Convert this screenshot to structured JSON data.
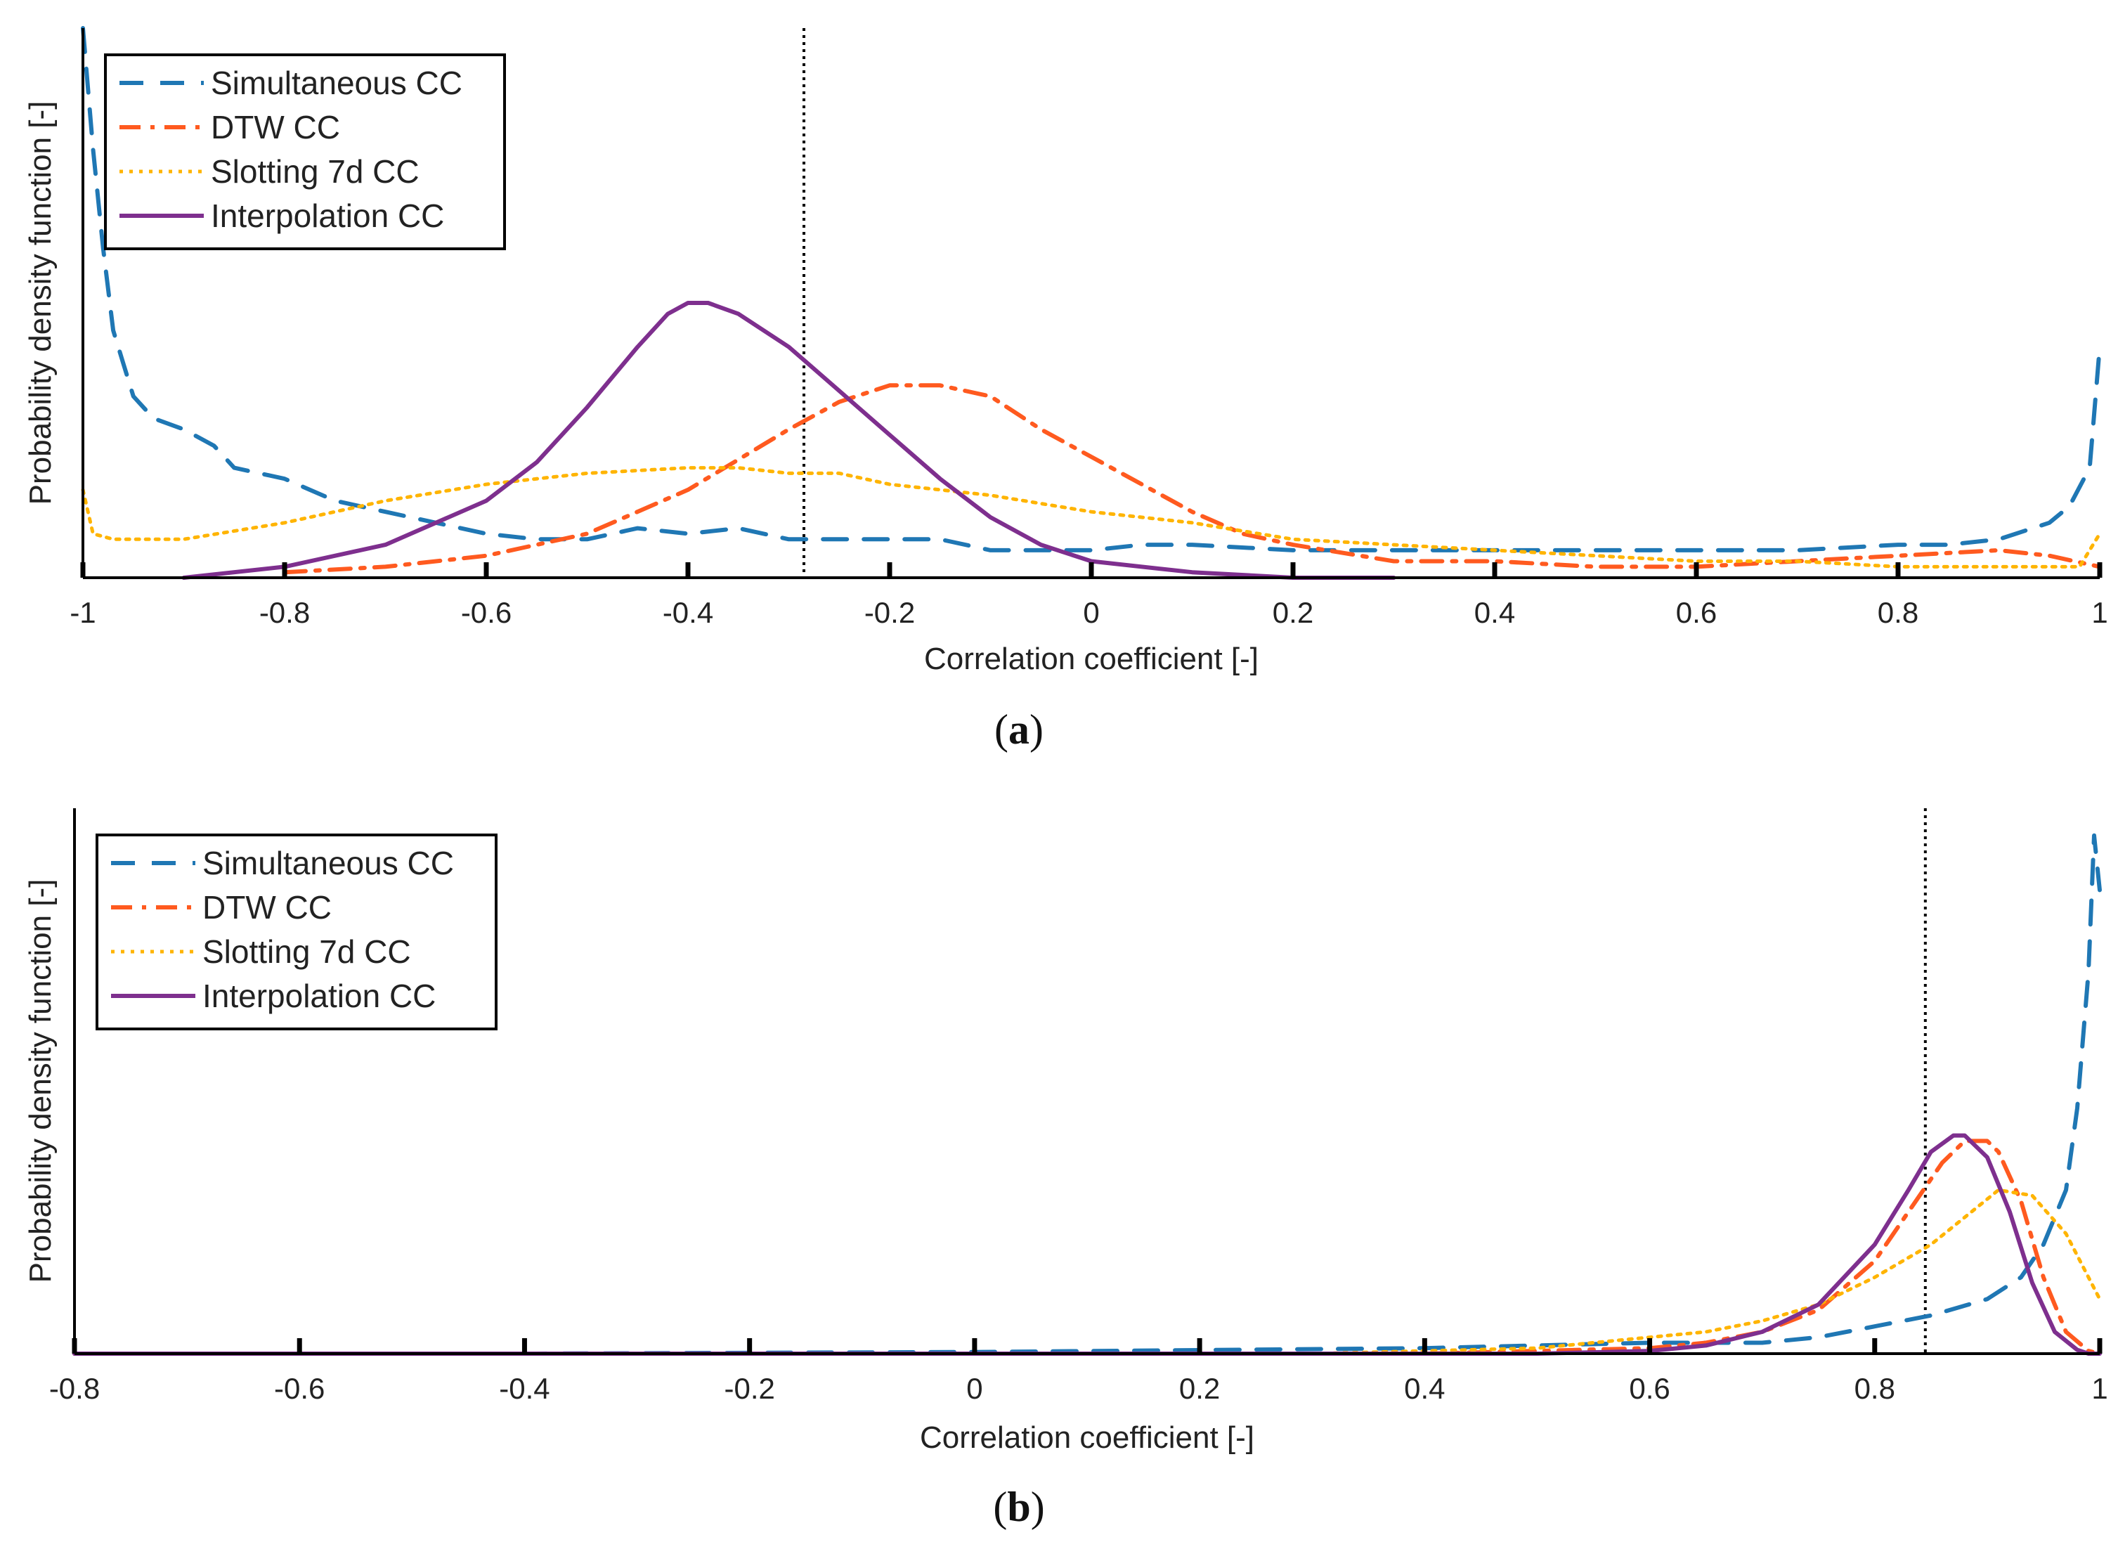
{
  "figure": {
    "panels": [
      {
        "caption_letter": "a",
        "caption_open": "(",
        "caption_close": ")"
      },
      {
        "caption_letter": "b",
        "caption_open": "(",
        "caption_close": ")"
      }
    ]
  },
  "colors": {
    "simultaneous": "#1f77b4",
    "dtw": "#ff5a1f",
    "slotting": "#ffb400",
    "interpolation": "#7e2f8e",
    "axis": "#000000"
  },
  "chart_data": [
    {
      "type": "line",
      "panel": "a",
      "title": "",
      "xlabel": "Correlation coefficient [-]",
      "ylabel": "Probability density function [-]",
      "xlim": [
        -1,
        1
      ],
      "ylim": [
        0,
        1
      ],
      "xticks": [
        -1,
        -0.8,
        -0.6,
        -0.4,
        -0.2,
        0,
        0.2,
        0.4,
        0.6,
        0.8,
        1
      ],
      "xtick_labels": [
        "-1",
        "-0.8",
        "-0.6",
        "-0.4",
        "-0.2",
        "0",
        "0.2",
        "0.4",
        "0.6",
        "0.8",
        "1"
      ],
      "yticks_shown": false,
      "reference_line_x": -0.285,
      "legend_position": "top-left",
      "series": [
        {
          "name": "Simultaneous CC",
          "style": "dashed",
          "color_key": "simultaneous",
          "x": [
            -1,
            -0.99,
            -0.98,
            -0.97,
            -0.96,
            -0.95,
            -0.93,
            -0.9,
            -0.87,
            -0.85,
            -0.8,
            -0.75,
            -0.7,
            -0.65,
            -0.6,
            -0.55,
            -0.5,
            -0.45,
            -0.4,
            -0.35,
            -0.3,
            -0.25,
            -0.2,
            -0.15,
            -0.1,
            -0.05,
            0,
            0.05,
            0.1,
            0.2,
            0.3,
            0.4,
            0.5,
            0.6,
            0.7,
            0.8,
            0.85,
            0.9,
            0.95,
            0.97,
            0.99,
            1
          ],
          "y": [
            1.0,
            0.78,
            0.6,
            0.45,
            0.39,
            0.33,
            0.29,
            0.27,
            0.24,
            0.2,
            0.18,
            0.14,
            0.12,
            0.1,
            0.08,
            0.07,
            0.07,
            0.09,
            0.08,
            0.09,
            0.07,
            0.07,
            0.07,
            0.07,
            0.05,
            0.05,
            0.05,
            0.06,
            0.06,
            0.05,
            0.05,
            0.05,
            0.05,
            0.05,
            0.05,
            0.06,
            0.06,
            0.07,
            0.1,
            0.13,
            0.2,
            0.42
          ]
        },
        {
          "name": "DTW CC",
          "style": "dash-dot",
          "color_key": "dtw",
          "x": [
            -0.8,
            -0.7,
            -0.6,
            -0.5,
            -0.4,
            -0.3,
            -0.25,
            -0.2,
            -0.15,
            -0.1,
            -0.05,
            0,
            0.05,
            0.1,
            0.15,
            0.2,
            0.3,
            0.4,
            0.5,
            0.6,
            0.7,
            0.8,
            0.9,
            0.95,
            1
          ],
          "y": [
            0.01,
            0.02,
            0.04,
            0.08,
            0.16,
            0.27,
            0.32,
            0.35,
            0.35,
            0.33,
            0.27,
            0.22,
            0.17,
            0.12,
            0.08,
            0.06,
            0.03,
            0.03,
            0.02,
            0.02,
            0.03,
            0.04,
            0.05,
            0.04,
            0.02
          ]
        },
        {
          "name": "Slotting 7d CC",
          "style": "dotted",
          "color_key": "slotting",
          "x": [
            -1,
            -0.99,
            -0.97,
            -0.9,
            -0.8,
            -0.7,
            -0.6,
            -0.5,
            -0.4,
            -0.35,
            -0.3,
            -0.25,
            -0.2,
            -0.1,
            0,
            0.1,
            0.2,
            0.3,
            0.4,
            0.5,
            0.6,
            0.7,
            0.8,
            0.9,
            0.95,
            0.98,
            1
          ],
          "y": [
            0.16,
            0.08,
            0.07,
            0.07,
            0.1,
            0.14,
            0.17,
            0.19,
            0.2,
            0.2,
            0.19,
            0.19,
            0.17,
            0.15,
            0.12,
            0.1,
            0.07,
            0.06,
            0.05,
            0.04,
            0.03,
            0.03,
            0.02,
            0.02,
            0.02,
            0.02,
            0.08
          ]
        },
        {
          "name": "Interpolation CC",
          "style": "solid",
          "color_key": "interpolation",
          "x": [
            -0.9,
            -0.8,
            -0.7,
            -0.6,
            -0.55,
            -0.5,
            -0.45,
            -0.42,
            -0.4,
            -0.38,
            -0.35,
            -0.3,
            -0.25,
            -0.2,
            -0.15,
            -0.1,
            -0.05,
            0,
            0.1,
            0.2,
            0.3
          ],
          "y": [
            0.0,
            0.02,
            0.06,
            0.14,
            0.21,
            0.31,
            0.42,
            0.48,
            0.5,
            0.5,
            0.48,
            0.42,
            0.34,
            0.26,
            0.18,
            0.11,
            0.06,
            0.03,
            0.01,
            0.0,
            0.0
          ]
        }
      ]
    },
    {
      "type": "line",
      "panel": "b",
      "title": "",
      "xlabel": "Correlation coefficient [-]",
      "ylabel": "Probability density function [-]",
      "xlim": [
        -0.8,
        1
      ],
      "ylim": [
        0,
        1
      ],
      "xticks": [
        -0.8,
        -0.6,
        -0.4,
        -0.2,
        0,
        0.2,
        0.4,
        0.6,
        0.8,
        1
      ],
      "xtick_labels": [
        "-0.8",
        "-0.6",
        "-0.4",
        "-0.2",
        "0",
        "0.2",
        "0.4",
        "0.6",
        "0.8",
        "1"
      ],
      "yticks_shown": false,
      "reference_line_x": 0.845,
      "legend_position": "top-left",
      "series": [
        {
          "name": "Simultaneous CC",
          "style": "dashed",
          "color_key": "simultaneous",
          "x": [
            -0.8,
            -0.4,
            0,
            0.4,
            0.6,
            0.7,
            0.75,
            0.8,
            0.85,
            0.9,
            0.93,
            0.95,
            0.97,
            0.98,
            0.99,
            0.995,
            1
          ],
          "y": [
            0.0,
            0.0,
            0.003,
            0.01,
            0.02,
            0.02,
            0.03,
            0.05,
            0.07,
            0.1,
            0.14,
            0.2,
            0.3,
            0.45,
            0.7,
            0.95,
            0.85
          ]
        },
        {
          "name": "DTW CC",
          "style": "dash-dot",
          "color_key": "dtw",
          "x": [
            -0.8,
            0.4,
            0.6,
            0.65,
            0.7,
            0.75,
            0.8,
            0.83,
            0.86,
            0.88,
            0.9,
            0.91,
            0.93,
            0.95,
            0.97,
            0.99,
            1
          ],
          "y": [
            0.0,
            0.0,
            0.01,
            0.02,
            0.04,
            0.08,
            0.17,
            0.26,
            0.35,
            0.39,
            0.39,
            0.37,
            0.28,
            0.14,
            0.04,
            0.005,
            0.0
          ]
        },
        {
          "name": "Slotting 7d CC",
          "style": "dotted",
          "color_key": "slotting",
          "x": [
            -0.8,
            0.3,
            0.5,
            0.6,
            0.65,
            0.7,
            0.75,
            0.8,
            0.85,
            0.88,
            0.91,
            0.94,
            0.97,
            0.99,
            1
          ],
          "y": [
            0.0,
            0.0,
            0.01,
            0.03,
            0.04,
            0.06,
            0.09,
            0.14,
            0.2,
            0.25,
            0.3,
            0.29,
            0.22,
            0.14,
            0.1
          ]
        },
        {
          "name": "Interpolation CC",
          "style": "solid",
          "color_key": "interpolation",
          "x": [
            -0.8,
            0.5,
            0.6,
            0.65,
            0.7,
            0.75,
            0.8,
            0.83,
            0.85,
            0.87,
            0.88,
            0.9,
            0.92,
            0.94,
            0.96,
            0.98,
            0.99,
            1
          ],
          "y": [
            0.0,
            0.0,
            0.005,
            0.015,
            0.04,
            0.09,
            0.2,
            0.3,
            0.37,
            0.4,
            0.4,
            0.36,
            0.26,
            0.13,
            0.04,
            0.007,
            0.0,
            0.0
          ]
        }
      ]
    }
  ]
}
